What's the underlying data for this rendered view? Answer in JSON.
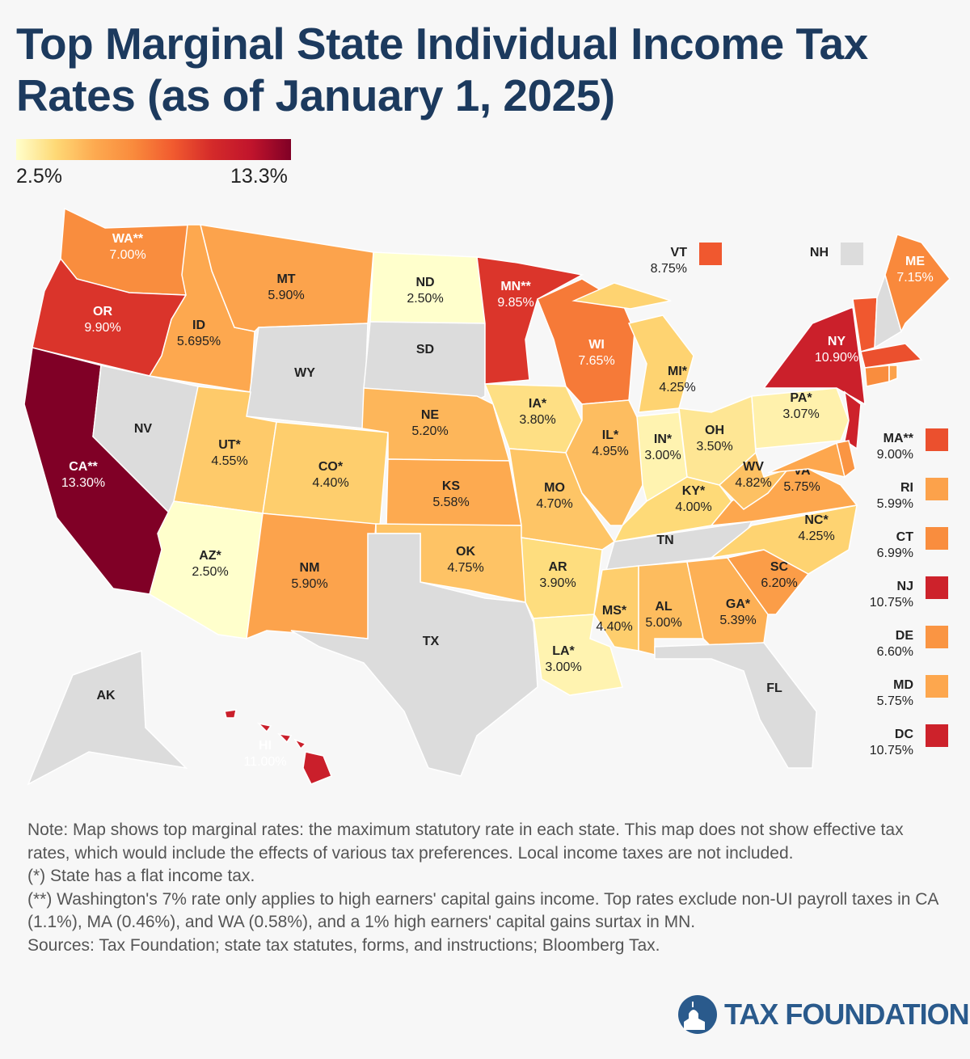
{
  "title": "Top Marginal State Individual Income Tax Rates (as of January 1, 2025)",
  "legend": {
    "min_label": "2.5%",
    "max_label": "13.3%",
    "min": 2.5,
    "max": 13.3,
    "stops": [
      "#ffffcc",
      "#fed976",
      "#fdaa50",
      "#f98a3c",
      "#f15a2f",
      "#d42a2a",
      "#c0142c",
      "#800026"
    ],
    "no_tax_color": "#dcdcdc"
  },
  "states": [
    {
      "abbr": "WA**",
      "rate": 7.0,
      "label": "7.00%"
    },
    {
      "abbr": "OR",
      "rate": 9.9,
      "label": "9.90%"
    },
    {
      "abbr": "CA**",
      "rate": 13.3,
      "label": "13.30%"
    },
    {
      "abbr": "NV",
      "rate": null,
      "label": ""
    },
    {
      "abbr": "ID",
      "rate": 5.695,
      "label": "5.695%"
    },
    {
      "abbr": "MT",
      "rate": 5.9,
      "label": "5.90%"
    },
    {
      "abbr": "WY",
      "rate": null,
      "label": ""
    },
    {
      "abbr": "UT*",
      "rate": 4.55,
      "label": "4.55%"
    },
    {
      "abbr": "AZ*",
      "rate": 2.5,
      "label": "2.50%"
    },
    {
      "abbr": "CO*",
      "rate": 4.4,
      "label": "4.40%"
    },
    {
      "abbr": "NM",
      "rate": 5.9,
      "label": "5.90%"
    },
    {
      "abbr": "ND",
      "rate": 2.5,
      "label": "2.50%"
    },
    {
      "abbr": "SD",
      "rate": null,
      "label": ""
    },
    {
      "abbr": "NE",
      "rate": 5.2,
      "label": "5.20%"
    },
    {
      "abbr": "KS",
      "rate": 5.58,
      "label": "5.58%"
    },
    {
      "abbr": "OK",
      "rate": 4.75,
      "label": "4.75%"
    },
    {
      "abbr": "TX",
      "rate": null,
      "label": ""
    },
    {
      "abbr": "MN**",
      "rate": 9.85,
      "label": "9.85%"
    },
    {
      "abbr": "IA*",
      "rate": 3.8,
      "label": "3.80%"
    },
    {
      "abbr": "MO",
      "rate": 4.7,
      "label": "4.70%"
    },
    {
      "abbr": "AR",
      "rate": 3.9,
      "label": "3.90%"
    },
    {
      "abbr": "LA*",
      "rate": 3.0,
      "label": "3.00%"
    },
    {
      "abbr": "WI",
      "rate": 7.65,
      "label": "7.65%"
    },
    {
      "abbr": "IL*",
      "rate": 4.95,
      "label": "4.95%"
    },
    {
      "abbr": "MI*",
      "rate": 4.25,
      "label": "4.25%"
    },
    {
      "abbr": "IN*",
      "rate": 3.0,
      "label": "3.00%"
    },
    {
      "abbr": "OH",
      "rate": 3.5,
      "label": "3.50%"
    },
    {
      "abbr": "KY*",
      "rate": 4.0,
      "label": "4.00%"
    },
    {
      "abbr": "TN",
      "rate": null,
      "label": ""
    },
    {
      "abbr": "MS*",
      "rate": 4.4,
      "label": "4.40%"
    },
    {
      "abbr": "AL",
      "rate": 5.0,
      "label": "5.00%"
    },
    {
      "abbr": "GA*",
      "rate": 5.39,
      "label": "5.39%"
    },
    {
      "abbr": "FL",
      "rate": null,
      "label": ""
    },
    {
      "abbr": "SC",
      "rate": 6.2,
      "label": "6.20%"
    },
    {
      "abbr": "NC*",
      "rate": 4.25,
      "label": "4.25%"
    },
    {
      "abbr": "VA",
      "rate": 5.75,
      "label": "5.75%"
    },
    {
      "abbr": "WV",
      "rate": 4.82,
      "label": "4.82%"
    },
    {
      "abbr": "PA*",
      "rate": 3.07,
      "label": "3.07%"
    },
    {
      "abbr": "NY",
      "rate": 10.9,
      "label": "10.90%"
    },
    {
      "abbr": "NJ",
      "rate": 10.75,
      "label": ""
    },
    {
      "abbr": "MD",
      "rate": 5.75,
      "label": ""
    },
    {
      "abbr": "DE",
      "rate": 6.6,
      "label": ""
    },
    {
      "abbr": "VT",
      "rate": 8.75,
      "label": ""
    },
    {
      "abbr": "NH",
      "rate": null,
      "label": ""
    },
    {
      "abbr": "ME",
      "rate": 7.15,
      "label": "7.15%"
    },
    {
      "abbr": "MA**",
      "rate": 9.0,
      "label": ""
    },
    {
      "abbr": "CT",
      "rate": 6.99,
      "label": ""
    },
    {
      "abbr": "RI",
      "rate": 5.99,
      "label": ""
    },
    {
      "abbr": "AK",
      "rate": null,
      "label": ""
    },
    {
      "abbr": "HI",
      "rate": 11.0,
      "label": "11.00%"
    }
  ],
  "side_legend": [
    {
      "abbr": "VT",
      "rate": 8.75,
      "label": "8.75%"
    },
    {
      "abbr": "NH",
      "rate": null,
      "label": ""
    },
    {
      "abbr": "MA**",
      "rate": 9.0,
      "label": "9.00%"
    },
    {
      "abbr": "RI",
      "rate": 5.99,
      "label": "5.99%"
    },
    {
      "abbr": "CT",
      "rate": 6.99,
      "label": "6.99%"
    },
    {
      "abbr": "NJ",
      "rate": 10.75,
      "label": "10.75%"
    },
    {
      "abbr": "DE",
      "rate": 6.6,
      "label": "6.60%"
    },
    {
      "abbr": "MD",
      "rate": 5.75,
      "label": "5.75%"
    },
    {
      "abbr": "DC",
      "rate": 10.75,
      "label": "10.75%"
    }
  ],
  "notes": [
    "Note: Map shows top marginal rates: the maximum statutory rate in each state. This map does not show effective tax rates, which would include the effects of various tax preferences. Local income taxes are not included.",
    "(*) State has a flat income tax.",
    "(**) Washington's 7% rate only applies to high earners' capital gains income. Top rates exclude non-UI payroll taxes in CA (1.1%), MA (0.46%), and WA (0.58%), and a 1% high earners' capital gains surtax in MN.",
    "Sources: Tax Foundation; state tax statutes, forms, and instructions; Bloomberg Tax."
  ],
  "logo": {
    "text": "TAX FOUNDATION",
    "color": "#2a5a8c"
  }
}
